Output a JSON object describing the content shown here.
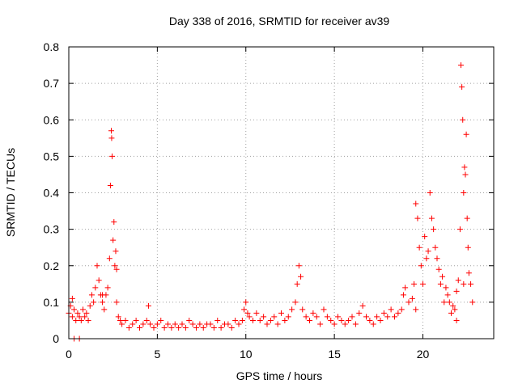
{
  "chart_data": {
    "type": "scatter",
    "title": "Day 338 of 2016, SRMTID for receiver av39",
    "xlabel": "GPS time / hours",
    "ylabel": "SRMTID / TECUs",
    "xlim": [
      0,
      24
    ],
    "ylim": [
      0,
      0.8
    ],
    "x_ticks": [
      0,
      5,
      10,
      15,
      20
    ],
    "x_tick_labels": [
      "0",
      "5",
      "10",
      "15",
      "20"
    ],
    "y_ticks": [
      0,
      0.1,
      0.2,
      0.3,
      0.4,
      0.5,
      0.6,
      0.7,
      0.8
    ],
    "y_tick_labels": [
      "0",
      "0.1",
      "0.2",
      "0.3",
      "0.4",
      "0.5",
      "0.6",
      "0.7",
      "0.8"
    ],
    "grid": true,
    "marker": "plus",
    "color": "#ff0000",
    "series": [
      {
        "name": "SRMTID",
        "x": [
          0.0,
          0.1,
          0.2,
          0.3,
          0.4,
          0.5,
          0.6,
          0.7,
          0.8,
          0.9,
          1.0,
          1.1,
          1.2,
          1.3,
          1.4,
          1.5,
          1.6,
          1.7,
          1.8,
          1.9,
          2.0,
          2.1,
          2.2,
          2.3,
          2.35,
          2.4,
          2.42,
          2.45,
          2.5,
          2.55,
          2.6,
          2.65,
          2.7,
          2.8,
          2.9,
          3.0,
          3.2,
          3.4,
          3.6,
          3.8,
          4.0,
          4.2,
          4.4,
          4.5,
          4.6,
          4.8,
          5.0,
          5.2,
          5.4,
          5.6,
          5.8,
          6.0,
          6.2,
          6.4,
          6.6,
          6.8,
          7.0,
          7.2,
          7.4,
          7.6,
          7.8,
          8.0,
          8.2,
          8.4,
          8.6,
          8.8,
          9.0,
          9.2,
          9.4,
          9.6,
          9.8,
          9.9,
          10.0,
          10.1,
          10.2,
          10.4,
          10.6,
          10.8,
          11.0,
          11.2,
          11.4,
          11.6,
          11.8,
          12.0,
          12.2,
          12.4,
          12.6,
          12.8,
          12.9,
          13.0,
          13.1,
          13.2,
          13.4,
          13.6,
          13.8,
          14.0,
          14.2,
          14.4,
          14.6,
          14.8,
          15.0,
          15.2,
          15.4,
          15.6,
          15.8,
          16.0,
          16.2,
          16.4,
          16.6,
          16.8,
          17.0,
          17.2,
          17.4,
          17.6,
          17.8,
          18.0,
          18.2,
          18.4,
          18.6,
          18.8,
          18.9,
          19.0,
          19.2,
          19.4,
          19.5,
          19.6,
          19.7,
          19.8,
          19.9,
          20.0,
          20.1,
          20.2,
          20.3,
          20.4,
          20.5,
          20.6,
          20.7,
          20.8,
          20.9,
          21.0,
          21.1,
          21.2,
          21.3,
          21.4,
          21.5,
          21.6,
          21.7,
          21.8,
          21.9,
          22.0,
          22.1,
          22.15,
          22.2,
          22.25,
          22.3,
          22.35,
          22.4,
          22.45,
          22.5,
          22.55,
          22.6,
          22.7,
          22.8,
          0.3,
          0.6,
          0.2,
          1.9,
          2.7,
          19.6,
          21.9,
          22.3
        ],
        "y": [
          0.07,
          0.09,
          0.06,
          0.08,
          0.05,
          0.07,
          0.06,
          0.05,
          0.08,
          0.06,
          0.07,
          0.05,
          0.09,
          0.12,
          0.1,
          0.14,
          0.2,
          0.16,
          0.12,
          0.1,
          0.08,
          0.12,
          0.14,
          0.22,
          0.42,
          0.57,
          0.55,
          0.5,
          0.27,
          0.32,
          0.2,
          0.24,
          0.1,
          0.06,
          0.05,
          0.04,
          0.05,
          0.03,
          0.04,
          0.05,
          0.03,
          0.04,
          0.05,
          0.09,
          0.04,
          0.03,
          0.04,
          0.05,
          0.03,
          0.04,
          0.03,
          0.04,
          0.03,
          0.04,
          0.03,
          0.05,
          0.04,
          0.03,
          0.04,
          0.03,
          0.04,
          0.04,
          0.03,
          0.05,
          0.03,
          0.04,
          0.04,
          0.03,
          0.05,
          0.04,
          0.05,
          0.08,
          0.1,
          0.07,
          0.06,
          0.05,
          0.07,
          0.05,
          0.06,
          0.04,
          0.05,
          0.06,
          0.04,
          0.07,
          0.05,
          0.06,
          0.08,
          0.1,
          0.15,
          0.2,
          0.17,
          0.08,
          0.06,
          0.05,
          0.07,
          0.06,
          0.04,
          0.08,
          0.06,
          0.05,
          0.04,
          0.06,
          0.05,
          0.04,
          0.05,
          0.06,
          0.04,
          0.07,
          0.09,
          0.06,
          0.05,
          0.04,
          0.06,
          0.05,
          0.07,
          0.06,
          0.08,
          0.06,
          0.07,
          0.08,
          0.12,
          0.14,
          0.1,
          0.11,
          0.15,
          0.37,
          0.33,
          0.25,
          0.2,
          0.15,
          0.28,
          0.22,
          0.24,
          0.4,
          0.33,
          0.3,
          0.25,
          0.22,
          0.19,
          0.15,
          0.17,
          0.1,
          0.14,
          0.12,
          0.1,
          0.07,
          0.09,
          0.08,
          0.05,
          0.16,
          0.3,
          0.75,
          0.69,
          0.6,
          0.4,
          0.47,
          0.45,
          0.56,
          0.33,
          0.25,
          0.18,
          0.15,
          0.1,
          0.0,
          0.0,
          0.11,
          0.12,
          0.19,
          0.08,
          0.13,
          0.15
        ]
      }
    ]
  }
}
